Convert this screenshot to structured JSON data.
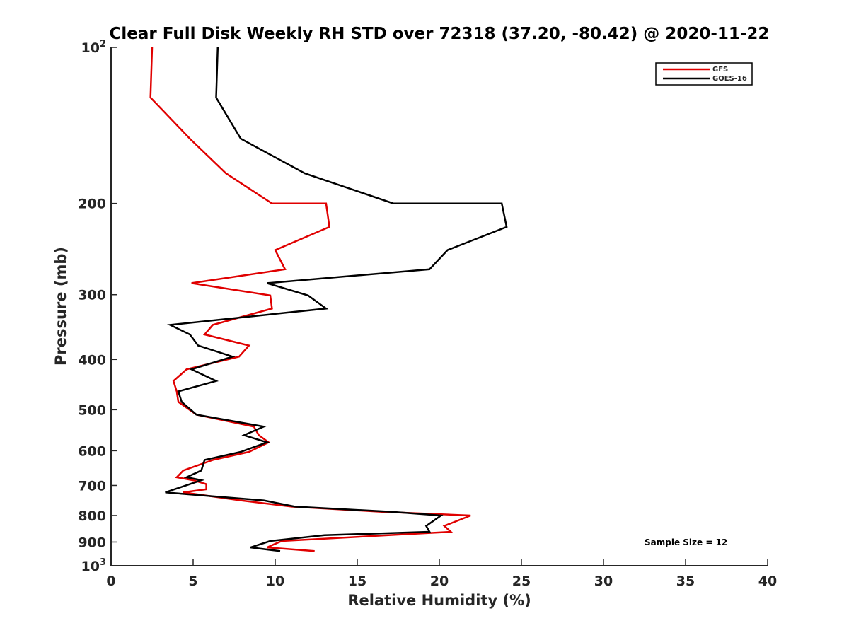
{
  "chart_data": {
    "type": "line",
    "title": "Clear Full Disk Weekly RH STD over 72318 (37.20, -80.42) @ 2020-11-22",
    "xlabel": "Relative Humidity (%)",
    "ylabel": "Pressure (mb)",
    "xlim": [
      0,
      40
    ],
    "ylim": [
      100,
      1000
    ],
    "y_scale": "log",
    "y_reversed": true,
    "grid": false,
    "legend_position": "top-right",
    "x_ticks": [
      0,
      5,
      10,
      15,
      20,
      25,
      30,
      35,
      40
    ],
    "x_tick_labels": [
      "0",
      "5",
      "10",
      "15",
      "20",
      "25",
      "30",
      "35",
      "40"
    ],
    "y_ticks": [
      100,
      200,
      300,
      400,
      500,
      600,
      700,
      800,
      900,
      1000
    ],
    "y_tick_labels": [
      {
        "base": "10",
        "exp": "2"
      },
      {
        "base": "200",
        "exp": ""
      },
      {
        "base": "300",
        "exp": ""
      },
      {
        "base": "400",
        "exp": ""
      },
      {
        "base": "500",
        "exp": ""
      },
      {
        "base": "600",
        "exp": ""
      },
      {
        "base": "700",
        "exp": ""
      },
      {
        "base": "800",
        "exp": ""
      },
      {
        "base": "900",
        "exp": ""
      },
      {
        "base": "10",
        "exp": "3"
      }
    ],
    "series": [
      {
        "name": "GFS",
        "color": "#e00000",
        "points": [
          [
            2.5,
            100
          ],
          [
            2.4,
            125
          ],
          [
            4.8,
            150
          ],
          [
            7.0,
            175
          ],
          [
            9.8,
            200
          ],
          [
            13.1,
            200
          ],
          [
            13.3,
            222
          ],
          [
            10.0,
            246
          ],
          [
            10.6,
            268
          ],
          [
            4.9,
            285
          ],
          [
            9.7,
            301
          ],
          [
            9.8,
            319
          ],
          [
            6.2,
            343
          ],
          [
            5.7,
            358
          ],
          [
            8.4,
            376
          ],
          [
            7.8,
            395
          ],
          [
            4.6,
            418
          ],
          [
            3.8,
            440
          ],
          [
            4.0,
            461
          ],
          [
            4.1,
            483
          ],
          [
            5.2,
            511
          ],
          [
            8.7,
            539
          ],
          [
            9.0,
            560
          ],
          [
            9.6,
            578
          ],
          [
            8.4,
            603
          ],
          [
            6.2,
            625
          ],
          [
            4.4,
            655
          ],
          [
            4.0,
            675
          ],
          [
            5.0,
            684
          ],
          [
            5.8,
            696
          ],
          [
            5.8,
            712
          ],
          [
            4.4,
            722
          ],
          [
            7.9,
            748
          ],
          [
            11.0,
            769
          ],
          [
            16.5,
            787
          ],
          [
            21.9,
            800
          ],
          [
            20.3,
            838
          ],
          [
            20.7,
            860
          ],
          [
            16.9,
            873
          ],
          [
            10.4,
            896
          ],
          [
            9.5,
            922
          ],
          [
            12.4,
            937
          ]
        ]
      },
      {
        "name": "GOES-16",
        "color": "#000000",
        "points": [
          [
            6.5,
            100
          ],
          [
            6.4,
            125
          ],
          [
            7.9,
            150
          ],
          [
            11.8,
            175
          ],
          [
            17.2,
            200
          ],
          [
            23.8,
            200
          ],
          [
            24.1,
            222
          ],
          [
            20.5,
            246
          ],
          [
            19.4,
            268
          ],
          [
            9.5,
            285
          ],
          [
            12.0,
            301
          ],
          [
            13.1,
            319
          ],
          [
            3.6,
            343
          ],
          [
            4.8,
            358
          ],
          [
            5.3,
            376
          ],
          [
            7.4,
            395
          ],
          [
            4.9,
            418
          ],
          [
            6.4,
            440
          ],
          [
            4.1,
            461
          ],
          [
            4.3,
            483
          ],
          [
            5.2,
            511
          ],
          [
            9.3,
            539
          ],
          [
            8.1,
            560
          ],
          [
            9.5,
            578
          ],
          [
            7.9,
            603
          ],
          [
            5.7,
            625
          ],
          [
            5.5,
            655
          ],
          [
            4.6,
            675
          ],
          [
            5.5,
            684
          ],
          [
            4.8,
            696
          ],
          [
            3.3,
            722
          ],
          [
            9.3,
            748
          ],
          [
            11.2,
            769
          ],
          [
            17.1,
            787
          ],
          [
            20.1,
            800
          ],
          [
            19.2,
            838
          ],
          [
            19.4,
            860
          ],
          [
            13.0,
            873
          ],
          [
            9.7,
            896
          ],
          [
            8.5,
            922
          ],
          [
            10.3,
            937
          ]
        ]
      }
    ],
    "legend": [
      "GFS",
      "GOES-16"
    ],
    "annotation": "Sample Size = 12"
  }
}
